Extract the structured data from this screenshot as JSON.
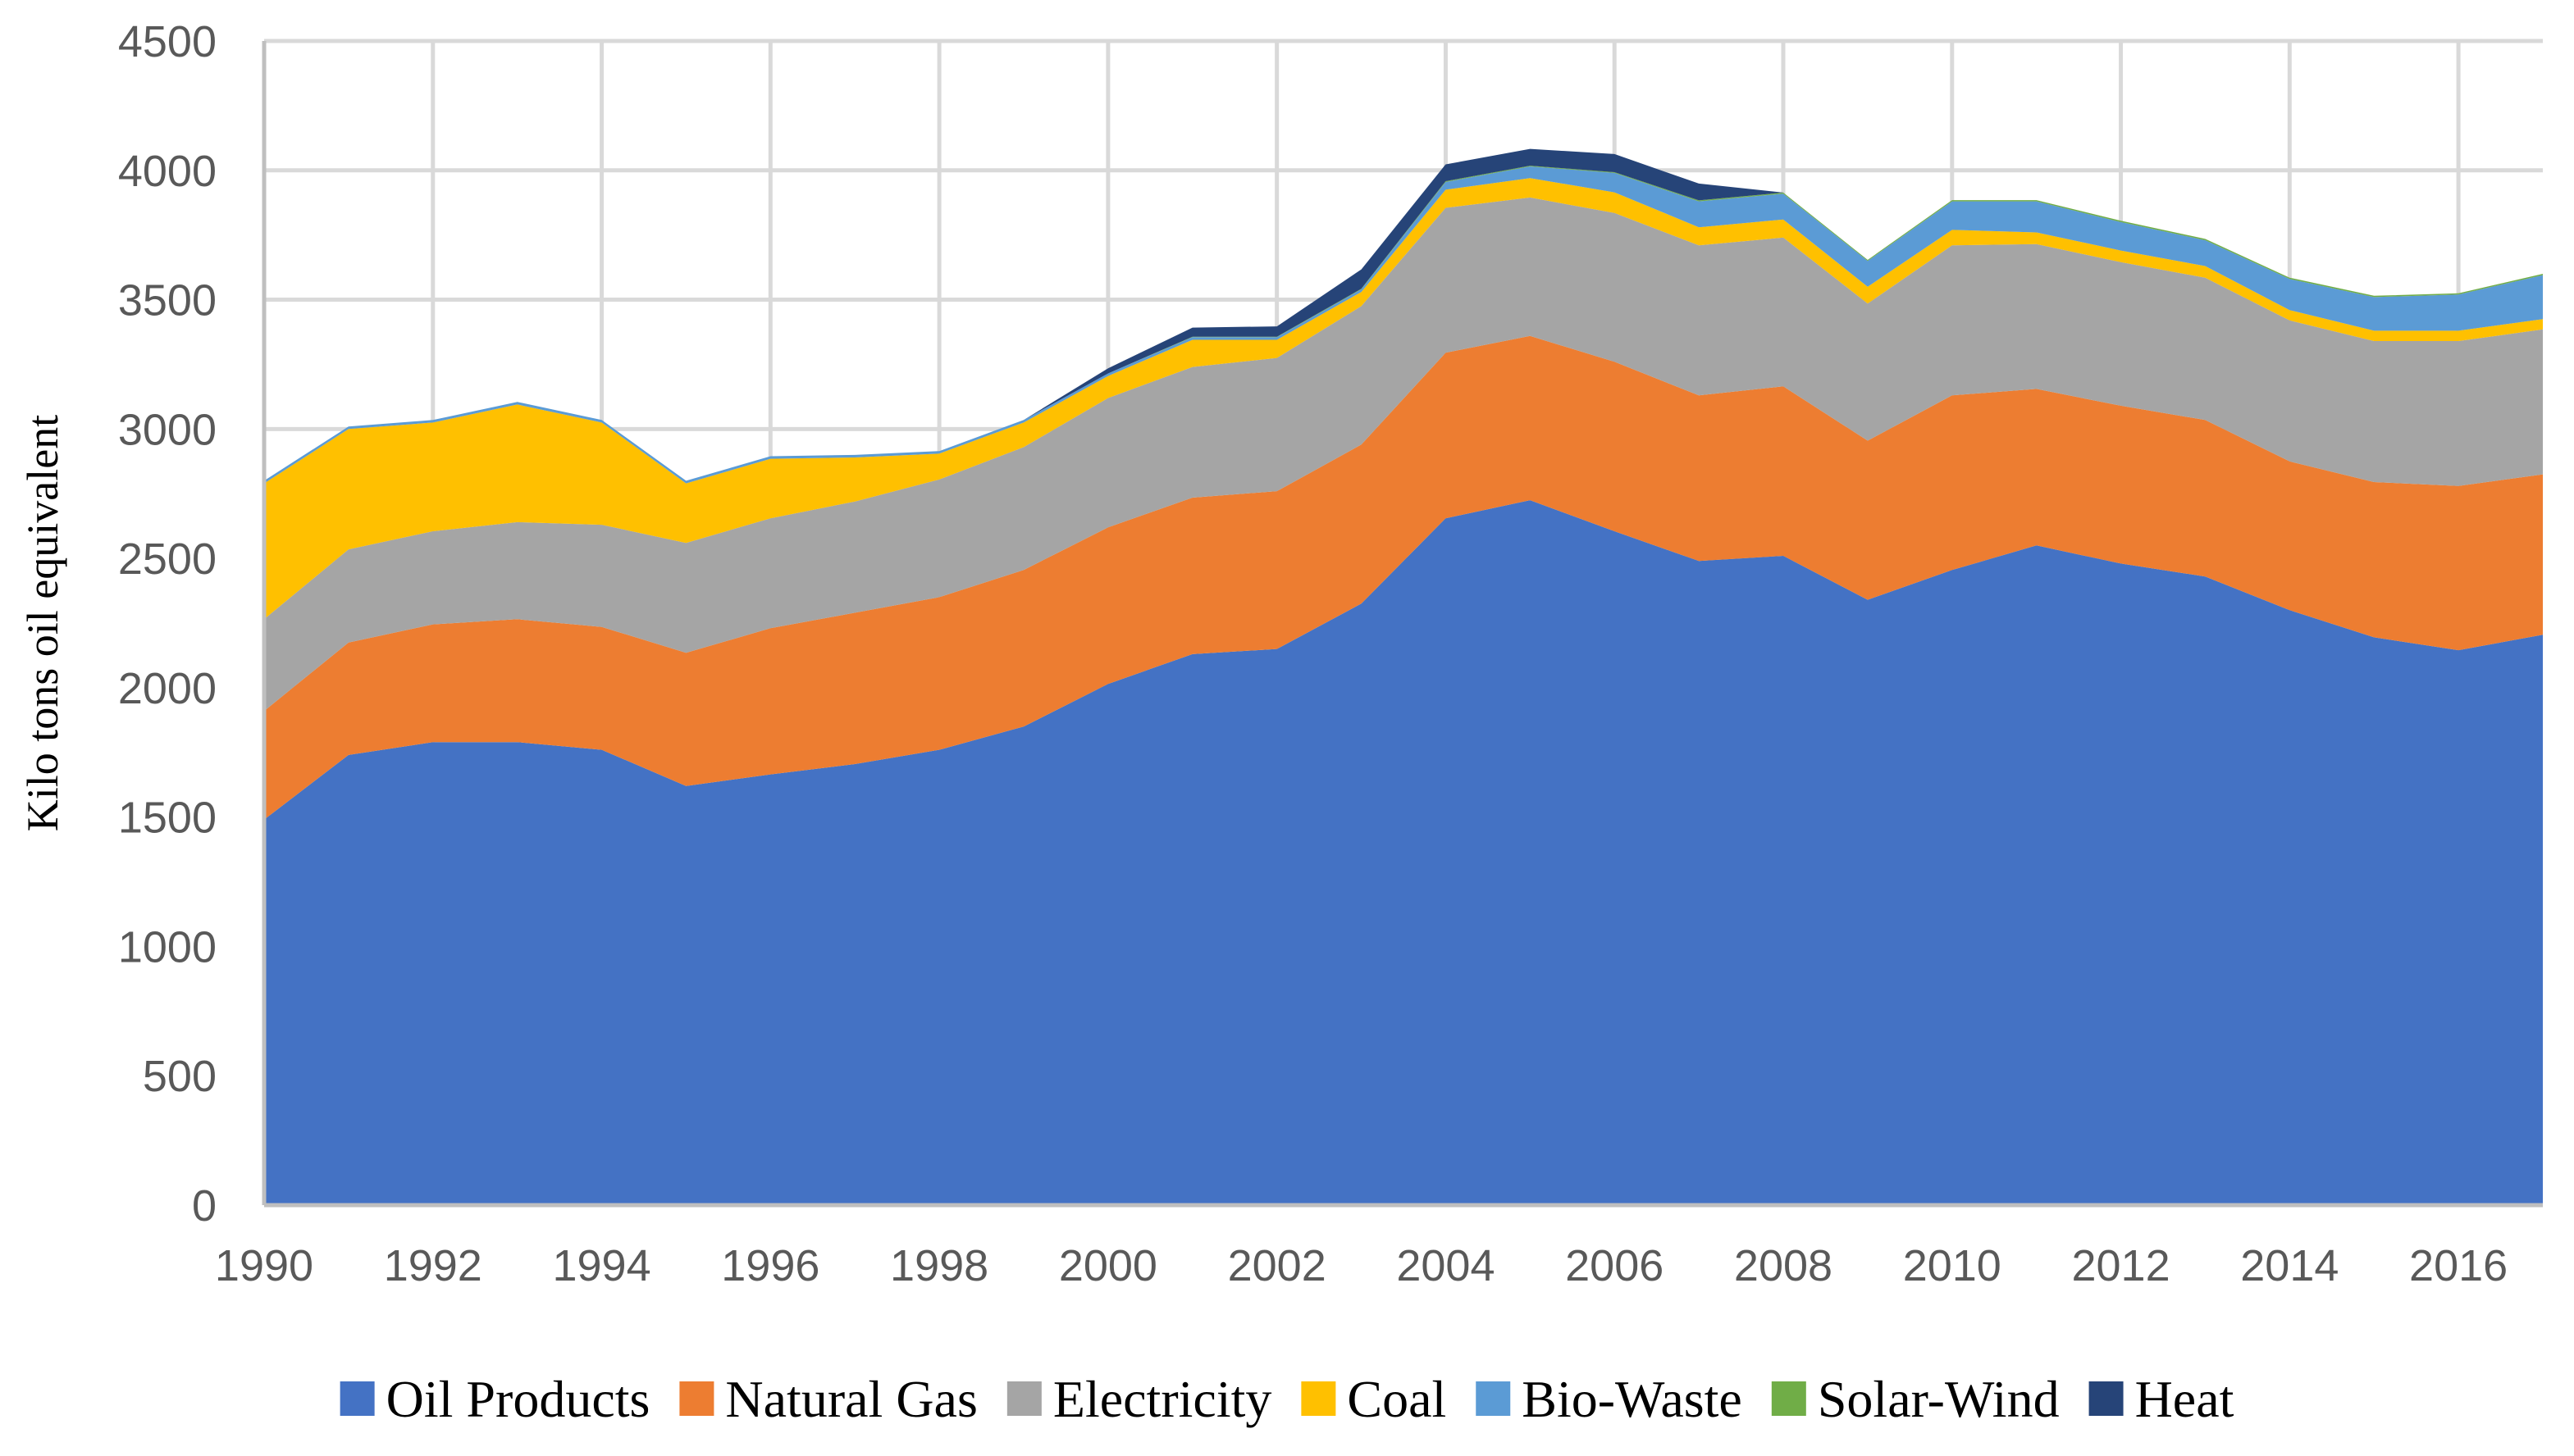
{
  "chart_data": {
    "type": "area",
    "stacked": true,
    "title": "",
    "xlabel": "",
    "ylabel": "Kilo tons oil equivalent",
    "xlim": [
      1990,
      2017
    ],
    "ylim": [
      0,
      4500
    ],
    "grid": true,
    "legend_position": "bottom",
    "x": [
      1990,
      1991,
      1992,
      1993,
      1994,
      1995,
      1996,
      1997,
      1998,
      1999,
      2000,
      2001,
      2002,
      2003,
      2004,
      2005,
      2006,
      2007,
      2008,
      2009,
      2010,
      2011,
      2012,
      2013,
      2014,
      2015,
      2016,
      2017
    ],
    "x_ticks": [
      "1990",
      "1992",
      "1994",
      "1996",
      "1998",
      "2000",
      "2002",
      "2004",
      "2006",
      "2008",
      "2010",
      "2012",
      "2014",
      "2016"
    ],
    "y_ticks": [
      "0",
      "500",
      "1000",
      "1500",
      "2000",
      "2500",
      "3000",
      "3500",
      "4000",
      "4500"
    ],
    "series": [
      {
        "name": "Oil Products",
        "color": "#4472c4",
        "values": [
          1490,
          1740,
          1790,
          1790,
          1760,
          1620,
          1665,
          1705,
          1760,
          1850,
          2015,
          2130,
          2150,
          2325,
          2655,
          2725,
          2605,
          2490,
          2510,
          2340,
          2455,
          2550,
          2480,
          2430,
          2300,
          2195,
          2145,
          2205
        ]
      },
      {
        "name": "Natural Gas",
        "color": "#ed7d31",
        "values": [
          420,
          435,
          455,
          475,
          475,
          515,
          565,
          585,
          590,
          605,
          605,
          605,
          610,
          615,
          640,
          635,
          655,
          640,
          655,
          615,
          675,
          605,
          610,
          605,
          575,
          600,
          635,
          620
        ]
      },
      {
        "name": "Electricity",
        "color": "#a5a5a5",
        "values": [
          355,
          360,
          360,
          375,
          395,
          425,
          425,
          430,
          455,
          475,
          500,
          505,
          515,
          535,
          560,
          535,
          575,
          580,
          575,
          530,
          580,
          560,
          555,
          550,
          545,
          545,
          560,
          560
        ]
      },
      {
        "name": "Coal",
        "color": "#ffc000",
        "values": [
          525,
          465,
          420,
          455,
          395,
          230,
          230,
          170,
          100,
          95,
          85,
          105,
          70,
          55,
          70,
          75,
          80,
          70,
          70,
          65,
          60,
          45,
          45,
          45,
          40,
          40,
          40,
          40
        ]
      },
      {
        "name": "Bio-Waste",
        "color": "#5b9bd5",
        "values": [
          10,
          10,
          10,
          10,
          10,
          10,
          10,
          10,
          10,
          10,
          10,
          10,
          10,
          10,
          30,
          45,
          75,
          100,
          100,
          100,
          110,
          120,
          110,
          100,
          120,
          130,
          140,
          170
        ]
      },
      {
        "name": "Solar-Wind",
        "color": "#70ad47",
        "values": [
          0,
          0,
          0,
          0,
          0,
          0,
          0,
          0,
          0,
          0,
          0,
          2,
          2,
          2,
          3,
          3,
          3,
          4,
          4,
          4,
          5,
          5,
          5,
          5,
          5,
          5,
          5,
          5
        ]
      },
      {
        "name": "Heat",
        "color": "#264478",
        "values": [
          0,
          0,
          0,
          0,
          0,
          0,
          0,
          0,
          0,
          0,
          20,
          35,
          40,
          75,
          65,
          65,
          70,
          65,
          0,
          0,
          0,
          0,
          0,
          0,
          0,
          0,
          0,
          0
        ]
      }
    ]
  }
}
